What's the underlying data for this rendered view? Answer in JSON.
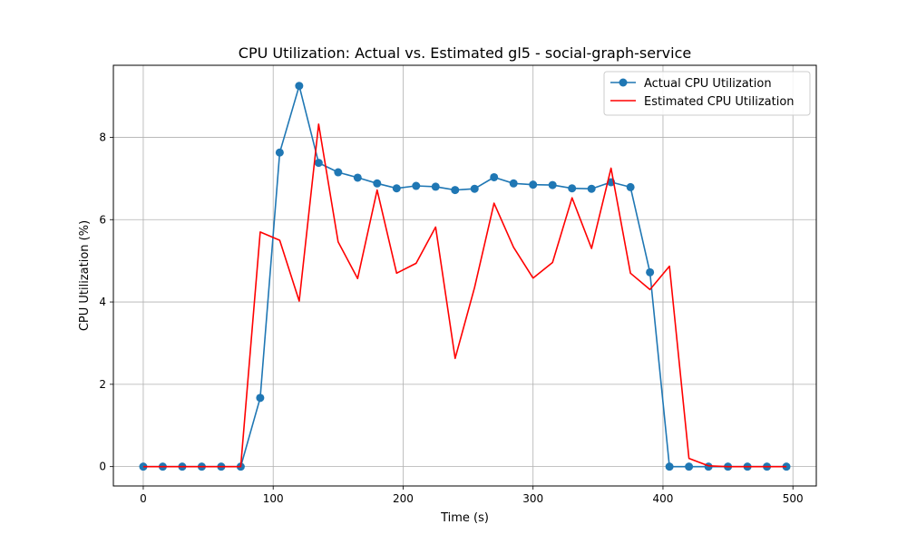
{
  "chart_data": {
    "type": "line",
    "title": "CPU Utilization: Actual vs. Estimated gl5 - social-graph-service",
    "xlabel": "Time (s)",
    "ylabel": "CPU Utilization (%)",
    "xlim": [
      -23,
      518
    ],
    "ylim": [
      -0.47,
      9.75
    ],
    "xticks": [
      0,
      100,
      200,
      300,
      400,
      500
    ],
    "yticks": [
      0,
      2,
      4,
      6,
      8
    ],
    "grid": true,
    "legend_position": "top-right",
    "series": [
      {
        "name": "Actual CPU Utilization",
        "color": "#1f77b4",
        "marker": "circle",
        "x": [
          0,
          15,
          30,
          45,
          60,
          75,
          90,
          105,
          120,
          135,
          150,
          165,
          180,
          195,
          210,
          225,
          240,
          255,
          270,
          285,
          300,
          315,
          330,
          345,
          360,
          375,
          390,
          405,
          420,
          435,
          450,
          465,
          480,
          495
        ],
        "y": [
          0,
          0,
          0,
          0,
          0,
          0,
          1.67,
          7.63,
          9.25,
          7.38,
          7.15,
          7.02,
          6.88,
          6.76,
          6.82,
          6.8,
          6.72,
          6.75,
          7.03,
          6.88,
          6.85,
          6.84,
          6.76,
          6.75,
          6.91,
          6.79,
          4.72,
          0,
          0,
          0,
          0,
          0,
          0,
          0
        ]
      },
      {
        "name": "Estimated CPU Utilization",
        "color": "#ff0000",
        "marker": "none",
        "x": [
          0,
          15,
          30,
          45,
          60,
          75,
          90,
          105,
          120,
          135,
          150,
          165,
          180,
          195,
          210,
          225,
          240,
          255,
          270,
          285,
          300,
          315,
          330,
          345,
          360,
          375,
          390,
          405,
          420,
          435,
          450,
          465,
          480,
          495
        ],
        "y": [
          0,
          0,
          0,
          0,
          0,
          0,
          5.7,
          5.5,
          4.02,
          8.32,
          5.46,
          4.57,
          6.72,
          4.7,
          4.94,
          5.82,
          2.63,
          4.35,
          6.4,
          5.33,
          4.58,
          4.96,
          6.53,
          5.3,
          7.25,
          4.7,
          4.3,
          4.87,
          0.2,
          0.02,
          0,
          0,
          0,
          0
        ]
      }
    ]
  }
}
